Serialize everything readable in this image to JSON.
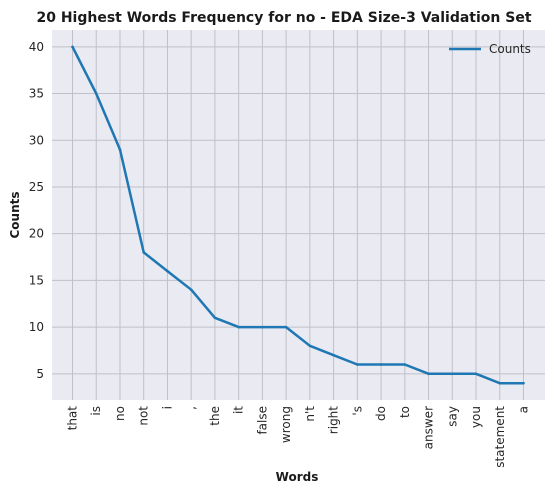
{
  "chart_data": {
    "type": "line",
    "title": "20 Highest Words Frequency for no - EDA Size-3 Validation Set",
    "xlabel": "Words",
    "ylabel": "Counts",
    "categories": [
      "that",
      "is",
      "no",
      "not",
      "i",
      ",",
      "the",
      "it",
      "false",
      "wrong",
      "n't",
      "right",
      "'s",
      "do",
      "to",
      "answer",
      "say",
      "you",
      "statement",
      "a"
    ],
    "series": [
      {
        "name": "Counts",
        "values": [
          40,
          35,
          29,
          18,
          16,
          14,
          11,
          10,
          10,
          10,
          8,
          7,
          6,
          6,
          6,
          5,
          5,
          5,
          4,
          4
        ],
        "color": "#1f77b4"
      }
    ],
    "ylim": [
      2.2,
      41.8
    ],
    "yticks": [
      5,
      10,
      15,
      20,
      25,
      30,
      35,
      40
    ],
    "grid": true,
    "legend": "top-right",
    "background_color": "#eaeaf2",
    "grid_color": "#c0c0c8"
  }
}
